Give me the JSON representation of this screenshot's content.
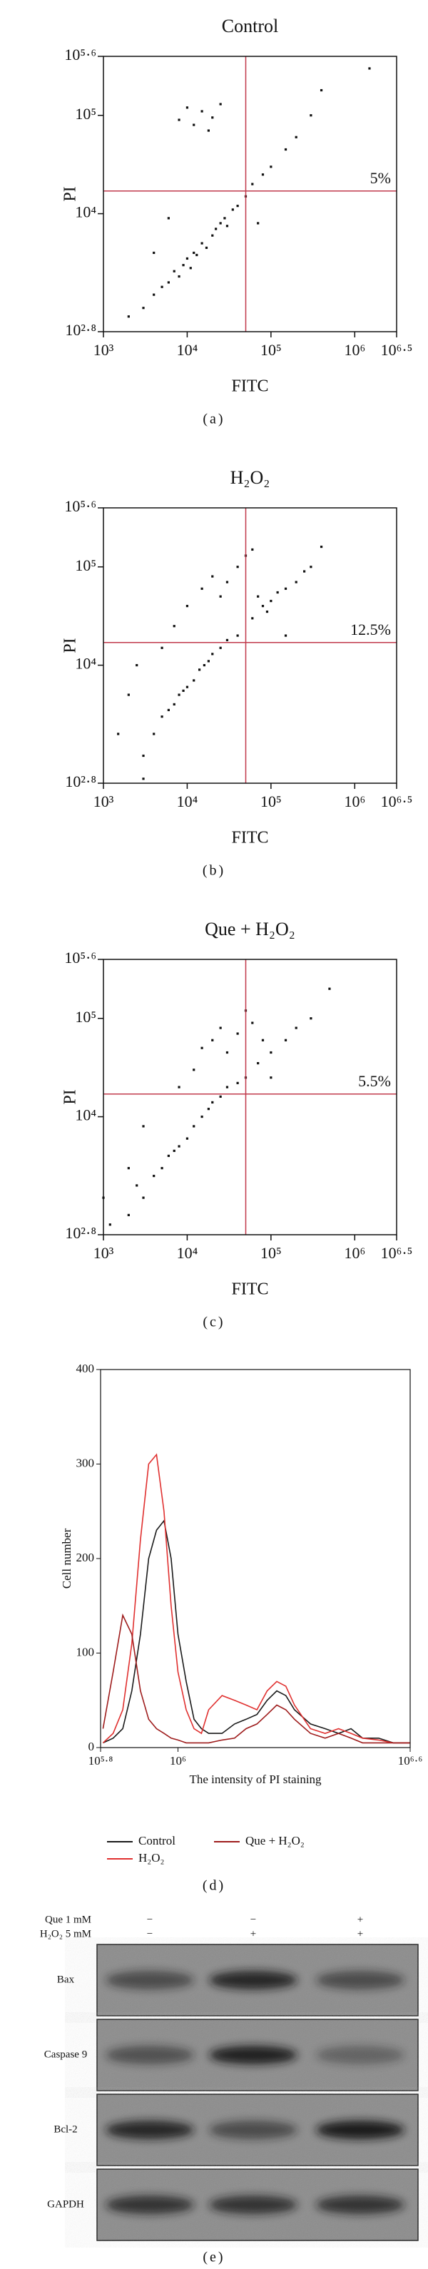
{
  "chart_data": [
    {
      "type": "scatter",
      "title": "Control",
      "xlabel": "FITC",
      "ylabel": "PI",
      "panel_label": "(a)",
      "annotation": "5%",
      "xscale": "log",
      "yscale": "log",
      "color": "#111111",
      "gate_color": "#c0394b",
      "gate": {
        "x": 50000,
        "y": 17000
      },
      "xlim": [
        1000,
        3162277.66
      ],
      "ylim": [
        630.957,
        398107.17
      ],
      "xticks": [
        {
          "value": 1000,
          "label": "10³"
        },
        {
          "value": 10000,
          "label": "10⁴"
        },
        {
          "value": 100000,
          "label": "10⁵"
        },
        {
          "value": 1000000,
          "label": "10⁶"
        },
        {
          "value": 3162277.66,
          "label": "10⁶·⁵"
        }
      ],
      "yticks": [
        {
          "value": 630.957,
          "label": "10²·⁸"
        },
        {
          "value": 10000,
          "label": "10⁴"
        },
        {
          "value": 100000,
          "label": "10⁵"
        },
        {
          "value": 398107.17,
          "label": "10⁵·⁶"
        }
      ],
      "x": [
        2000,
        3000,
        4000,
        5000,
        6000,
        7000,
        8000,
        9000,
        10000,
        11000,
        12000,
        13000,
        15000,
        17000,
        20000,
        22000,
        25000,
        28000,
        30000,
        35000,
        40000,
        50000,
        60000,
        80000,
        100000,
        150000,
        200000,
        300000,
        400000,
        8000,
        10000,
        12000,
        15000,
        20000,
        25000,
        18000,
        6000,
        4000,
        70000,
        1500000
      ],
      "values": [
        900,
        1100,
        1500,
        1800,
        2000,
        2600,
        2300,
        3000,
        3500,
        2800,
        4000,
        3800,
        5000,
        4500,
        6000,
        7000,
        8000,
        9000,
        7500,
        11000,
        12000,
        15000,
        20000,
        25000,
        30000,
        45000,
        60000,
        100000,
        180000,
        90000,
        120000,
        80000,
        110000,
        95000,
        130000,
        70000,
        9000,
        4000,
        8000,
        300000
      ]
    },
    {
      "type": "scatter",
      "title": "H₂O₂",
      "xlabel": "FITC",
      "ylabel": "PI",
      "panel_label": "(b)",
      "annotation": "12.5%",
      "xscale": "log",
      "yscale": "log",
      "color": "#111111",
      "gate_color": "#c0394b",
      "gate": {
        "x": 50000,
        "y": 17000
      },
      "xlim": [
        1000,
        3162277.66
      ],
      "ylim": [
        630.957,
        398107.17
      ],
      "xticks": [
        {
          "value": 1000,
          "label": "10³"
        },
        {
          "value": 10000,
          "label": "10⁴"
        },
        {
          "value": 100000,
          "label": "10⁵"
        },
        {
          "value": 1000000,
          "label": "10⁶"
        },
        {
          "value": 3162277.66,
          "label": "10⁶·⁵"
        }
      ],
      "yticks": [
        {
          "value": 630.957,
          "label": "10²·⁸"
        },
        {
          "value": 10000,
          "label": "10⁴"
        },
        {
          "value": 100000,
          "label": "10⁵"
        },
        {
          "value": 398107.17,
          "label": "10⁵·⁶"
        }
      ],
      "x": [
        1500,
        2000,
        3000,
        4000,
        5000,
        6000,
        7000,
        8000,
        9000,
        10000,
        12000,
        14000,
        16000,
        18000,
        20000,
        25000,
        30000,
        40000,
        60000,
        80000,
        100000,
        120000,
        150000,
        200000,
        250000,
        300000,
        70000,
        90000,
        10000,
        15000,
        20000,
        25000,
        30000,
        40000,
        50000,
        60000,
        400000,
        2500,
        5000,
        7000,
        3000,
        150000
      ],
      "values": [
        2000,
        5000,
        1200,
        2000,
        3000,
        3500,
        4000,
        5000,
        5500,
        6000,
        7000,
        9000,
        10000,
        11000,
        13000,
        15000,
        18000,
        20000,
        30000,
        40000,
        45000,
        55000,
        60000,
        70000,
        90000,
        100000,
        50000,
        35000,
        40000,
        60000,
        80000,
        50000,
        70000,
        100000,
        130000,
        150000,
        160000,
        10000,
        15000,
        25000,
        700,
        20000
      ]
    },
    {
      "type": "scatter",
      "title": "Que + H₂O₂",
      "xlabel": "FITC",
      "ylabel": "PI",
      "panel_label": "(c)",
      "annotation": "5.5%",
      "xscale": "log",
      "yscale": "log",
      "color": "#111111",
      "gate_color": "#c0394b",
      "gate": {
        "x": 50000,
        "y": 17000
      },
      "xlim": [
        1000,
        3162277.66
      ],
      "ylim": [
        630.957,
        398107.17
      ],
      "xticks": [
        {
          "value": 1000,
          "label": "10³"
        },
        {
          "value": 10000,
          "label": "10⁴"
        },
        {
          "value": 100000,
          "label": "10⁵"
        },
        {
          "value": 1000000,
          "label": "10⁶"
        },
        {
          "value": 3162277.66,
          "label": "10⁶·⁵"
        }
      ],
      "yticks": [
        {
          "value": 630.957,
          "label": "10²·⁸"
        },
        {
          "value": 10000,
          "label": "10⁴"
        },
        {
          "value": 100000,
          "label": "10⁵"
        },
        {
          "value": 398107.17,
          "label": "10⁵·⁶"
        }
      ],
      "x": [
        1200,
        2000,
        2500,
        3000,
        4000,
        5000,
        6000,
        7000,
        8000,
        10000,
        12000,
        15000,
        18000,
        20000,
        25000,
        30000,
        40000,
        50000,
        70000,
        100000,
        150000,
        200000,
        300000,
        15000,
        20000,
        25000,
        30000,
        40000,
        60000,
        80000,
        12000,
        8000,
        3000,
        2000,
        500000,
        1000,
        100000,
        50000
      ],
      "values": [
        800,
        1000,
        2000,
        1500,
        2500,
        3000,
        4000,
        4500,
        5000,
        6000,
        8000,
        10000,
        12000,
        14000,
        16000,
        20000,
        22000,
        25000,
        35000,
        45000,
        60000,
        80000,
        100000,
        50000,
        60000,
        80000,
        45000,
        70000,
        90000,
        60000,
        30000,
        20000,
        8000,
        3000,
        200000,
        1500,
        25000,
        120000
      ]
    },
    {
      "type": "line",
      "xlabel": "The intensity of PI staining",
      "ylabel": "Cell number",
      "panel_label": "(d)",
      "xscale": "log",
      "xlim": [
        630957,
        3981072
      ],
      "ylim": [
        0,
        400
      ],
      "xticks": [
        {
          "value": 630957,
          "label": "10⁵·⁸"
        },
        {
          "value": 1000000,
          "label": "10⁶"
        },
        {
          "value": 3981072,
          "label": "10⁶·⁶"
        }
      ],
      "yticks": [
        0,
        100,
        200,
        300,
        400
      ],
      "x": [
        640000,
        680000,
        720000,
        760000,
        800000,
        840000,
        880000,
        920000,
        960000,
        1000000,
        1050000,
        1100000,
        1150000,
        1200000,
        1300000,
        1400000,
        1500000,
        1600000,
        1700000,
        1800000,
        1900000,
        2000000,
        2200000,
        2400000,
        2600000,
        2800000,
        3000000,
        3300000,
        3600000,
        3980000
      ],
      "series": [
        {
          "name": "Control",
          "color": "#1a1a1a",
          "values": [
            5,
            10,
            20,
            60,
            120,
            200,
            230,
            240,
            200,
            120,
            70,
            30,
            20,
            15,
            15,
            25,
            30,
            35,
            50,
            60,
            55,
            40,
            25,
            20,
            15,
            20,
            10,
            10,
            5,
            5
          ]
        },
        {
          "name": "H₂O₂",
          "color": "#e0302f",
          "values": [
            5,
            15,
            40,
            110,
            220,
            300,
            310,
            250,
            150,
            80,
            40,
            20,
            15,
            40,
            55,
            50,
            45,
            40,
            60,
            70,
            65,
            45,
            20,
            15,
            20,
            15,
            10,
            8,
            5,
            5
          ]
        },
        {
          "name": "Que + H₂O₂",
          "color": "#9e1c1c",
          "values": [
            20,
            80,
            140,
            120,
            60,
            30,
            20,
            15,
            10,
            8,
            5,
            5,
            5,
            5,
            8,
            10,
            20,
            25,
            35,
            45,
            40,
            30,
            15,
            10,
            15,
            10,
            5,
            5,
            5,
            5
          ]
        }
      ]
    }
  ],
  "blot": {
    "header": [
      {
        "label": "Que 1 mM",
        "signs": [
          "−",
          "−",
          "+"
        ]
      },
      {
        "label": "H₂O₂ 5 mM",
        "signs": [
          "−",
          "+",
          "+"
        ]
      }
    ],
    "bands": [
      "Bax",
      "Caspase 9",
      "Bcl-2",
      "GAPDH"
    ],
    "panel_label": "(e)"
  }
}
